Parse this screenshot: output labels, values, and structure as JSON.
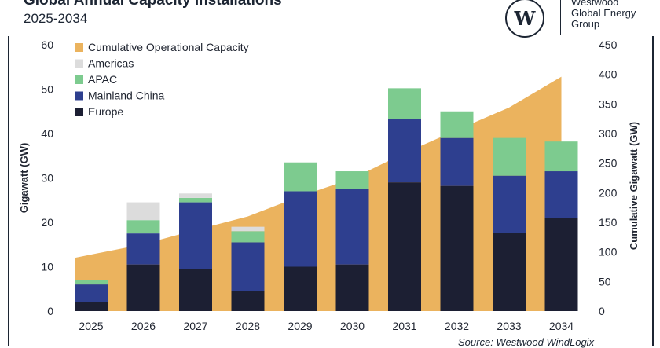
{
  "header": {
    "title": "Global Annual Capacity Installations",
    "subtitle": "2025-2034"
  },
  "brand": {
    "logo_letter": "W",
    "name_lines": [
      "Westwood",
      "Global Energy",
      "Group"
    ]
  },
  "footer": {
    "source": "Source: Westwood WindLogix"
  },
  "colors": {
    "cumulative": "#ebb35e",
    "americas": "#dcdcdc",
    "apac": "#7dcb8f",
    "mainland_china": "#2e3f8f",
    "europe": "#1c1f33",
    "axis_text": "#1f2430"
  },
  "chart_data": {
    "type": "bar",
    "stacked": true,
    "title": "Global Annual Capacity Installations",
    "subtitle": "2025-2034",
    "categories": [
      "2025",
      "2026",
      "2027",
      "2028",
      "2029",
      "2030",
      "2031",
      "2032",
      "2033",
      "2034"
    ],
    "series": [
      {
        "name": "Europe",
        "values": [
          2.0,
          10.5,
          9.5,
          4.5,
          10.0,
          10.5,
          29.0,
          28.2,
          17.7,
          21.0
        ]
      },
      {
        "name": "Mainland China",
        "values": [
          4.0,
          7.0,
          15.0,
          11.0,
          17.0,
          17.0,
          14.2,
          10.8,
          12.8,
          10.5
        ]
      },
      {
        "name": "APAC",
        "values": [
          1.0,
          3.0,
          1.0,
          2.5,
          6.5,
          4.0,
          7.0,
          6.0,
          8.5,
          6.7
        ]
      },
      {
        "name": "Americas",
        "values": [
          0.0,
          4.0,
          1.0,
          1.0,
          0.0,
          0.0,
          0.0,
          0.0,
          0.0,
          0.0
        ]
      }
    ],
    "cumulative": {
      "name": "Cumulative Operational Capacity",
      "axis": "right",
      "values": [
        90,
        113,
        137,
        160,
        194,
        224,
        267,
        306,
        344,
        396
      ]
    },
    "legend": [
      "Cumulative Operational Capacity",
      "Americas",
      "APAC",
      "Mainland China",
      "Europe"
    ],
    "legend_position": "top-left",
    "ylabel": "Gigawatt (GW)",
    "ylim": [
      0,
      60
    ],
    "yticks": [
      0,
      10,
      20,
      30,
      40,
      50,
      60
    ],
    "y2label": "Cumulative Gigawatt (GW)",
    "y2lim": [
      0,
      450
    ],
    "y2ticks": [
      0,
      50,
      100,
      150,
      200,
      250,
      300,
      350,
      400,
      450
    ],
    "grid": false
  }
}
